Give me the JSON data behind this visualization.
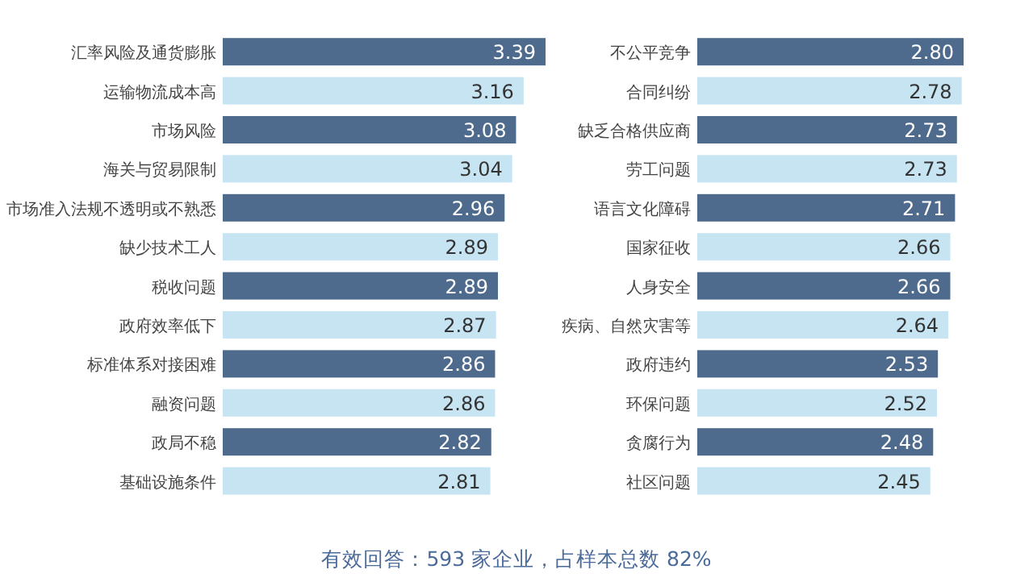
{
  "chart_data": [
    {
      "type": "bar",
      "orientation": "horizontal",
      "data_labels": true,
      "categories": [
        "汇率风险及通货膨胀",
        "运输物流成本高",
        "市场风险",
        "海关与贸易限制",
        "市场准入法规不透明或不熟悉",
        "缺少技术工人",
        "税收问题",
        "政府效率低下",
        "标准体系对接困难",
        "融资问题",
        "政局不稳",
        "基础设施条件"
      ],
      "values": [
        3.39,
        3.16,
        3.08,
        3.04,
        2.96,
        2.89,
        2.89,
        2.87,
        2.86,
        2.86,
        2.82,
        2.81
      ],
      "colors": [
        "#4e6a8c",
        "#c6e4f2",
        "#4e6a8c",
        "#c6e4f2",
        "#4e6a8c",
        "#c6e4f2",
        "#4e6a8c",
        "#c6e4f2",
        "#4e6a8c",
        "#c6e4f2",
        "#4e6a8c",
        "#c6e4f2"
      ],
      "annotations": [
        "有效回答：593 家企业，占样本总数 82%"
      ]
    },
    {
      "type": "bar",
      "orientation": "horizontal",
      "data_labels": true,
      "categories": [
        "不公平竞争",
        "合同纠纷",
        "缺乏合格供应商",
        "劳工问题",
        "语言文化障碍",
        "国家征收",
        "人身安全",
        "疾病、自然灾害等",
        "政府违约",
        "环保问题",
        "贪腐行为",
        "社区问题"
      ],
      "values": [
        2.8,
        2.78,
        2.73,
        2.73,
        2.71,
        2.66,
        2.66,
        2.64,
        2.53,
        2.52,
        2.48,
        2.45
      ],
      "value_labels": [
        "2.80",
        "2.78",
        "2.73",
        "2.73",
        "2.71",
        "2.66",
        "2.66",
        "2.64",
        "2.53",
        "2.52",
        "2.48",
        "2.45"
      ],
      "colors": [
        "#4e6a8c",
        "#c6e4f2",
        "#4e6a8c",
        "#c6e4f2",
        "#4e6a8c",
        "#c6e4f2",
        "#4e6a8c",
        "#c6e4f2",
        "#4e6a8c",
        "#c6e4f2",
        "#4e6a8c",
        "#c6e4f2"
      ]
    }
  ]
}
